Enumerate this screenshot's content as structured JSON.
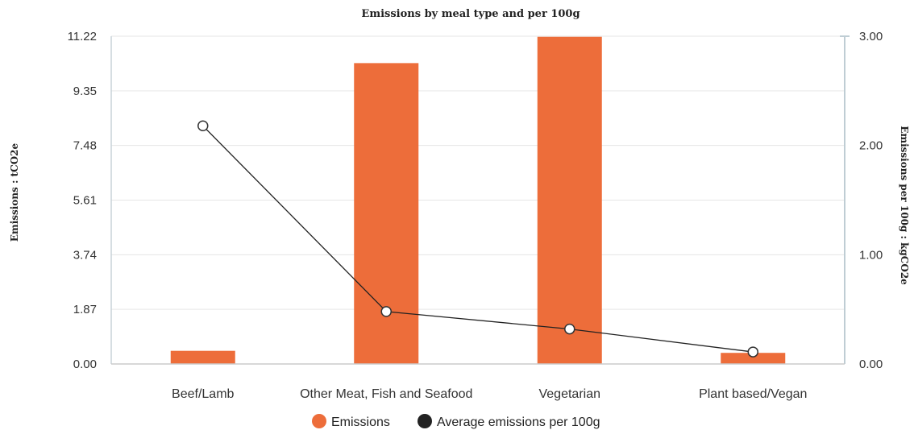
{
  "chart_data": {
    "type": "bar",
    "title": "Emissions by meal type and per 100g",
    "categories": [
      "Beef/Lamb",
      "Other Meat, Fish and Seafood",
      "Vegetarian",
      "Plant based/Vegan"
    ],
    "series": [
      {
        "name": "Emissions",
        "type": "bar",
        "axis": "left",
        "color": "#ed6d3a",
        "values": [
          0.45,
          10.3,
          11.2,
          0.38
        ]
      },
      {
        "name": "Average emissions per 100g",
        "type": "line",
        "axis": "right",
        "color": "#222222",
        "values": [
          2.18,
          0.48,
          0.32,
          0.11
        ]
      }
    ],
    "y_left": {
      "label": "Emissions : tCO2e",
      "ticks": [
        "0.00",
        "1.87",
        "3.74",
        "5.61",
        "7.48",
        "9.35",
        "11.22"
      ],
      "range": [
        0,
        11.22
      ]
    },
    "y_right": {
      "label": "Emissions per 100g : kgCO2e",
      "ticks": [
        "0.00",
        "1.00",
        "2.00",
        "3.00"
      ],
      "range": [
        0,
        3.0
      ]
    },
    "grid": true,
    "legend": "bottom-center"
  }
}
